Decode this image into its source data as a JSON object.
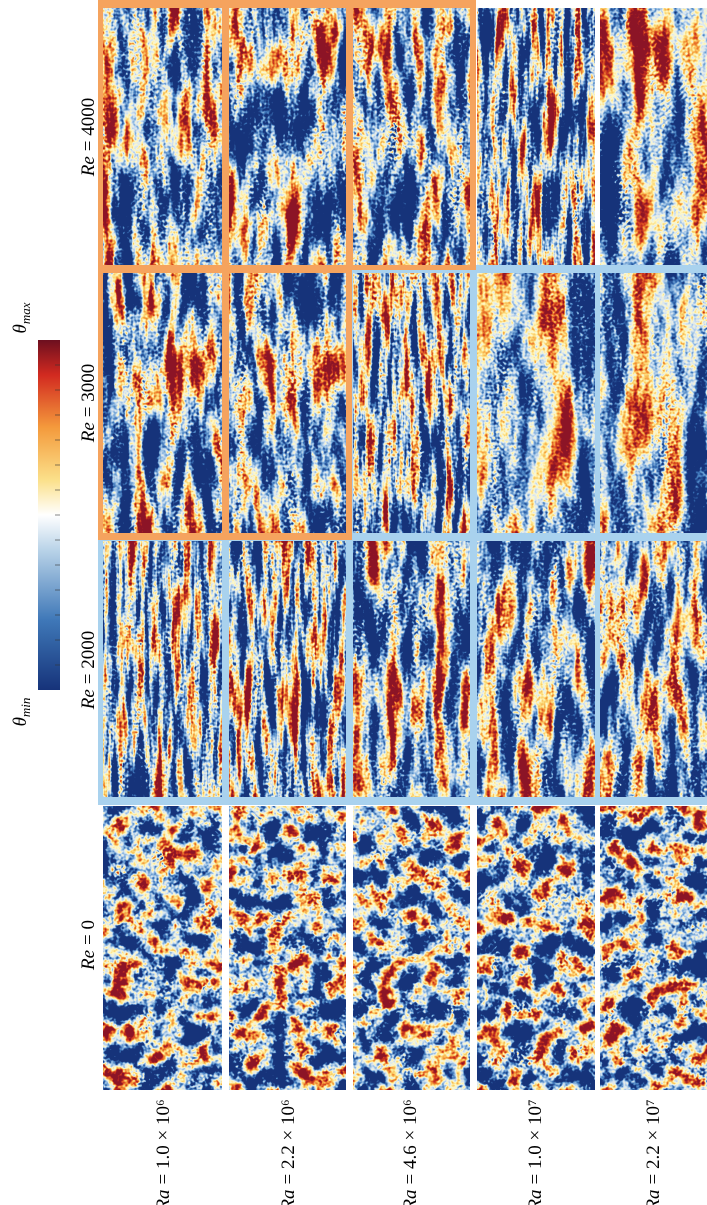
{
  "figure": {
    "colorbar": {
      "top": {
        "symbol": "θ",
        "subscript": "max"
      },
      "bottom": {
        "symbol": "θ",
        "subscript": "min"
      }
    },
    "re_labels": [
      {
        "var": "Re",
        "value": "= 0"
      },
      {
        "var": "Re",
        "value": "= 2000"
      },
      {
        "var": "Re",
        "value": "= 3000"
      },
      {
        "var": "Re",
        "value": "= 4000"
      }
    ],
    "ra_labels": [
      {
        "var": "Ra",
        "value": "= 1.0 × 10⁶"
      },
      {
        "var": "Ra",
        "value": "= 2.2 × 10⁶"
      },
      {
        "var": "Ra",
        "value": "= 4.6 × 10⁶"
      },
      {
        "var": "Ra",
        "value": "= 1.0 × 10⁷"
      },
      {
        "var": "Ra",
        "value": "= 2.2 × 10⁷"
      }
    ]
  }
}
